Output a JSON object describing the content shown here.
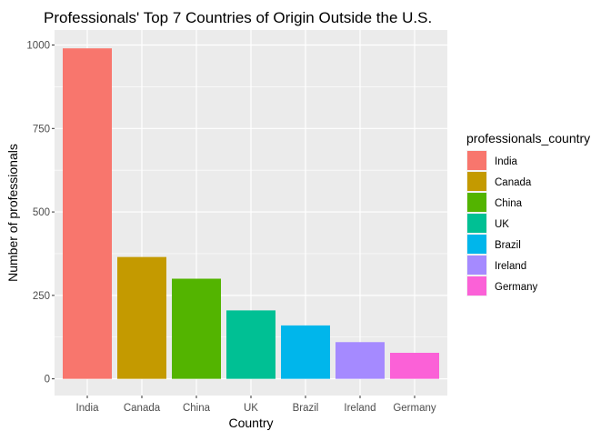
{
  "chart_data": {
    "type": "bar",
    "title": "Professionals' Top 7 Countries of Origin Outside the U.S.",
    "xlabel": "Country",
    "ylabel": "Number of professionals",
    "categories": [
      "India",
      "Canada",
      "China",
      "UK",
      "Brazil",
      "Ireland",
      "Germany"
    ],
    "values": [
      990,
      365,
      300,
      205,
      160,
      110,
      78
    ],
    "colors": [
      "#F8766D",
      "#C49A00",
      "#53B400",
      "#00C094",
      "#00B6EB",
      "#A58AFF",
      "#FB61D7"
    ],
    "ylim": [
      -50,
      1045
    ],
    "yticks": [
      0,
      250,
      500,
      750,
      1000
    ],
    "ytick_labels": [
      "0",
      "250",
      "500",
      "750",
      "1000"
    ],
    "grid": true,
    "legend": {
      "title": "professionals_country",
      "position": "right",
      "entries": [
        "India",
        "Canada",
        "China",
        "UK",
        "Brazil",
        "Ireland",
        "Germany"
      ]
    }
  }
}
